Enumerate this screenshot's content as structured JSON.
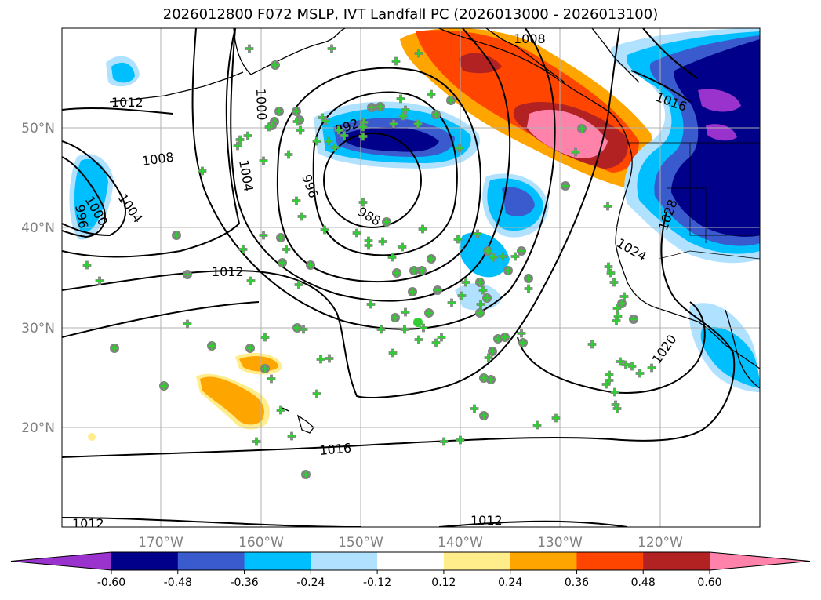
{
  "title": "2026012800 F072 MSLP, IVT Landfall PC (2026013000 - 2026013100)",
  "axes": {
    "lon_labels": [
      "170°W",
      "160°W",
      "150°W",
      "140°W",
      "130°W",
      "120°W"
    ],
    "lat_labels": [
      "50°N",
      "40°N",
      "30°N",
      "20°N"
    ]
  },
  "contour_labels": [
    "1012",
    "1008",
    "1000",
    "1004",
    "996",
    "1000",
    "992",
    "996",
    "988",
    "1004",
    "1012",
    "1008",
    "1016",
    "1028",
    "1024",
    "1020",
    "1016",
    "1012",
    "1012"
  ],
  "colorbar": {
    "ticks": [
      "-0.60",
      "-0.48",
      "-0.36",
      "-0.24",
      "-0.12",
      "0.12",
      "0.24",
      "0.36",
      "0.48",
      "0.60"
    ],
    "colors": [
      "#9a32cd",
      "#00008b",
      "#3a5bcd",
      "#00bfff",
      "#b0e2ff",
      "#ffffff",
      "#ffec8b",
      "#ffa500",
      "#ff4500",
      "#b22222",
      "#ff82ab"
    ]
  },
  "colors": {
    "station_marker": "#32cd32",
    "station_ring": "#808080",
    "coastline": "#000000",
    "grid": "#b0b0b0"
  }
}
